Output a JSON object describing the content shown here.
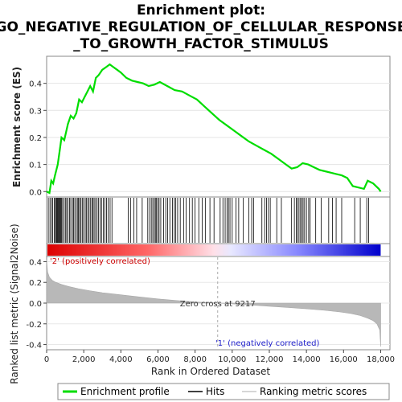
{
  "chart_data": {
    "type": "line",
    "title_lines": [
      "Enrichment plot:",
      "GO_NEGATIVE_REGULATION_OF_CELLULAR_RESPONSE",
      "_TO_GROWTH_FACTOR_STIMULUS"
    ],
    "enrichment": {
      "ylabel": "Enrichment score (ES)",
      "ylim": [
        -0.02,
        0.5
      ],
      "yticks": [
        "0.0",
        "0.1",
        "0.2",
        "0.3",
        "0.4"
      ],
      "ytick_values": [
        0.0,
        0.1,
        0.2,
        0.3,
        0.4
      ],
      "series": [
        {
          "name": "Enrichment profile",
          "color": "#00dd00",
          "x": [
            0,
            150,
            250,
            350,
            450,
            600,
            700,
            800,
            950,
            1050,
            1150,
            1300,
            1450,
            1600,
            1750,
            1900,
            2050,
            2200,
            2350,
            2500,
            2650,
            2800,
            3000,
            3200,
            3400,
            3600,
            3800,
            4000,
            4300,
            4600,
            4900,
            5200,
            5500,
            5800,
            6100,
            6500,
            6900,
            7300,
            7700,
            8100,
            8500,
            8900,
            9300,
            9700,
            10100,
            10500,
            10900,
            11300,
            11700,
            12100,
            12500,
            12900,
            13200,
            13500,
            13800,
            14100,
            14400,
            14700,
            15000,
            15300,
            15600,
            15900,
            16200,
            16500,
            16800,
            17100,
            17300,
            17600,
            17900,
            18000
          ],
          "y": [
            0.0,
            -0.005,
            0.04,
            0.03,
            0.06,
            0.1,
            0.15,
            0.2,
            0.19,
            0.22,
            0.25,
            0.28,
            0.27,
            0.29,
            0.34,
            0.33,
            0.35,
            0.37,
            0.39,
            0.37,
            0.42,
            0.43,
            0.45,
            0.46,
            0.47,
            0.46,
            0.45,
            0.44,
            0.42,
            0.41,
            0.405,
            0.4,
            0.39,
            0.395,
            0.405,
            0.39,
            0.375,
            0.37,
            0.355,
            0.34,
            0.315,
            0.29,
            0.265,
            0.245,
            0.225,
            0.205,
            0.185,
            0.17,
            0.155,
            0.14,
            0.12,
            0.1,
            0.085,
            0.09,
            0.105,
            0.1,
            0.09,
            0.08,
            0.075,
            0.07,
            0.065,
            0.06,
            0.05,
            0.02,
            0.015,
            0.01,
            0.04,
            0.03,
            0.01,
            0.0
          ]
        }
      ]
    },
    "hits": {
      "label": "Hits",
      "positions": [
        90,
        180,
        260,
        330,
        410,
        470,
        520,
        560,
        600,
        640,
        680,
        720,
        760,
        800,
        860,
        940,
        1010,
        1080,
        1150,
        1230,
        1300,
        1390,
        1450,
        1520,
        1600,
        1680,
        1720,
        1780,
        1850,
        1920,
        1990,
        2080,
        2150,
        2220,
        2290,
        2370,
        2440,
        2500,
        2560,
        2640,
        2720,
        2800,
        2880,
        2960,
        3050,
        3140,
        3230,
        3320,
        3420,
        3520,
        4400,
        4520,
        4700,
        4850,
        5150,
        5450,
        5550,
        5640,
        5720,
        5800,
        5860,
        5920,
        5990,
        6060,
        6150,
        6300,
        6420,
        6520,
        6640,
        6780,
        6880,
        6960,
        7060,
        7200,
        7380,
        7520,
        7700,
        7850,
        8000,
        8200,
        8380,
        8550,
        8800,
        9020,
        9350,
        9500,
        9620,
        9720,
        9800,
        9880,
        10000,
        10200,
        10350,
        10600,
        10900,
        11050,
        11150,
        11600,
        11750,
        11850,
        11950,
        12050,
        12400,
        12650,
        13200,
        13350,
        13450,
        13520,
        13600,
        13680,
        13750,
        13820,
        13900,
        14000,
        14120,
        14200,
        14500,
        14800,
        15200,
        15400,
        15600,
        15900,
        16600,
        16900,
        17250,
        17350
      ]
    },
    "ranked": {
      "ylabel": "Ranked list metric (Signal2Noise)",
      "xlabel": "Rank in Ordered Dataset",
      "ylim": [
        -0.45,
        0.45
      ],
      "yticks": [
        "-0.4",
        "-0.2",
        "0.0",
        "0.2",
        "0.4"
      ],
      "ytick_values": [
        -0.4,
        -0.2,
        0.0,
        0.2,
        0.4
      ],
      "x": [
        0,
        50,
        150,
        300,
        500,
        800,
        1200,
        1700,
        2300,
        3000,
        4000,
        5000,
        6000,
        7000,
        8000,
        9217,
        10000,
        11000,
        12000,
        13000,
        14000,
        15000,
        15800,
        16400,
        16900,
        17300,
        17600,
        17800,
        17950,
        18000
      ],
      "y": [
        0.42,
        0.3,
        0.25,
        0.22,
        0.2,
        0.18,
        0.16,
        0.14,
        0.12,
        0.1,
        0.08,
        0.06,
        0.04,
        0.025,
        0.012,
        0.0,
        -0.008,
        -0.018,
        -0.03,
        -0.042,
        -0.055,
        -0.07,
        -0.085,
        -0.1,
        -0.12,
        -0.145,
        -0.17,
        -0.2,
        -0.26,
        -0.42
      ],
      "zero_cross_label": "Zero cross at 9217",
      "zero_cross_x": 9217,
      "pos_label": "'2' (positively correlated)",
      "neg_label": "'1' (negatively correlated)",
      "pos_color": "#cc0000",
      "neg_color": "#2222cc"
    },
    "xlim": [
      0,
      18500
    ],
    "xticks": [
      "0",
      "2,000",
      "4,000",
      "6,000",
      "8,000",
      "10,000",
      "12,000",
      "14,000",
      "16,000",
      "18,000"
    ],
    "xtick_values": [
      0,
      2000,
      4000,
      6000,
      8000,
      10000,
      12000,
      14000,
      16000,
      18000
    ],
    "heatmap_end": 18000,
    "legend": [
      {
        "label": "Enrichment profile",
        "color": "#00dd00"
      },
      {
        "label": "Hits",
        "color": "#000000"
      },
      {
        "label": "Ranking metric scores",
        "color": "#c8c8c8"
      }
    ]
  }
}
